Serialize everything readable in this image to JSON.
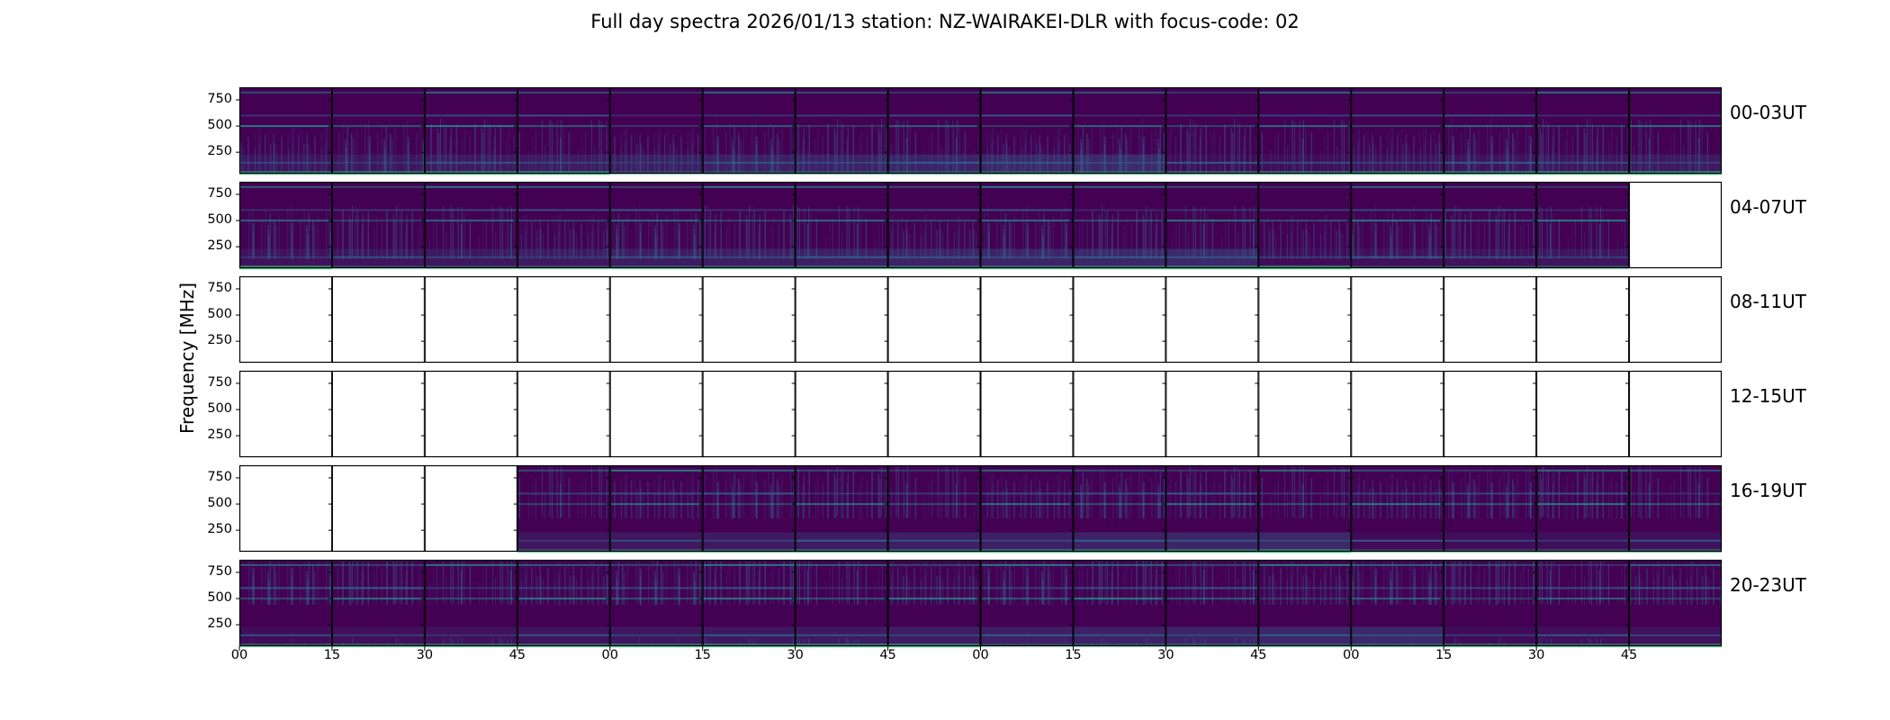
{
  "title": "Full day spectra 2026/01/13 station: NZ-WAIRAKEI-DLR with focus-code: 02",
  "chart_data": {
    "type": "heatmap",
    "title": "Full day spectra 2026/01/13 station: NZ-WAIRAKEI-DLR with focus-code: 02",
    "ylabel": "Frequency [MHz]",
    "xlabel": "",
    "ylim": [
      45,
      870
    ],
    "yticks": [
      "250",
      "500",
      "750"
    ],
    "ytick_values": [
      250,
      500,
      750
    ],
    "xticks": [
      "00",
      "15",
      "30",
      "45",
      "00",
      "15",
      "30",
      "45",
      "00",
      "15",
      "30",
      "45",
      "00",
      "15",
      "30",
      "45"
    ],
    "colormap": "viridis",
    "panels_per_row": 16,
    "rows": [
      {
        "label": "00-03UT",
        "data_present": [
          true,
          true,
          true,
          true,
          true,
          true,
          true,
          true,
          true,
          true,
          true,
          true,
          true,
          true,
          true,
          true
        ]
      },
      {
        "label": "04-07UT",
        "data_present": [
          true,
          true,
          true,
          true,
          true,
          true,
          true,
          true,
          true,
          true,
          true,
          true,
          true,
          true,
          true,
          false
        ]
      },
      {
        "label": "08-11UT",
        "data_present": [
          false,
          false,
          false,
          false,
          false,
          false,
          false,
          false,
          false,
          false,
          false,
          false,
          false,
          false,
          false,
          false
        ]
      },
      {
        "label": "12-15UT",
        "data_present": [
          false,
          false,
          false,
          false,
          false,
          false,
          false,
          false,
          false,
          false,
          false,
          false,
          false,
          false,
          false,
          false
        ]
      },
      {
        "label": "16-19UT",
        "data_present": [
          false,
          false,
          false,
          true,
          true,
          true,
          true,
          true,
          true,
          true,
          true,
          true,
          true,
          true,
          true,
          true
        ]
      },
      {
        "label": "20-23UT",
        "data_present": [
          true,
          true,
          true,
          true,
          true,
          true,
          true,
          true,
          true,
          true,
          true,
          true,
          true,
          true,
          true,
          true
        ]
      }
    ],
    "persistent_bands_MHz": [
      820,
      600,
      500,
      150,
      60
    ],
    "grid": false
  },
  "colors": {
    "background_dark": "#440154",
    "mid_dark": "#3b2a6e",
    "band_blue": "#31688e",
    "band_teal": "#21918c",
    "band_green": "#35b779",
    "empty_panel": "#ffffff",
    "frame": "#000000"
  }
}
